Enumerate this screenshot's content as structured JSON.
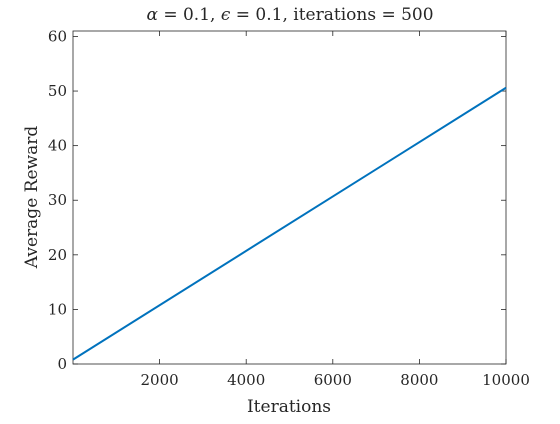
{
  "chart_data": {
    "type": "line",
    "title_parts": {
      "alpha_sym": "α",
      "alpha_val": " = 0.1, ",
      "eps_sym": "ϵ",
      "rest": " = 0.1, iterations = 500"
    },
    "xlabel": "Iterations",
    "ylabel": "Average Reward",
    "xlim": [
      0,
      10000
    ],
    "ylim": [
      0,
      61
    ],
    "xticks": [
      2000,
      4000,
      6000,
      8000,
      10000
    ],
    "yticks": [
      0,
      10,
      20,
      30,
      40,
      50,
      60
    ],
    "grid": false,
    "series": [
      {
        "color": "#0072BD",
        "x": [
          0,
          10000
        ],
        "y": [
          0.8,
          50.6
        ]
      }
    ]
  }
}
